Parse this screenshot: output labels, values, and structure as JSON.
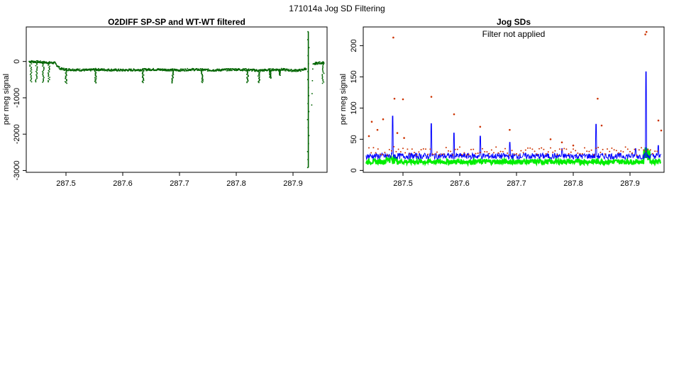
{
  "page": {
    "super_title": "171014a   Jog SD Filtering"
  },
  "chart_data": [
    {
      "type": "scatter",
      "title": "O2DIFF SP-SP and WT-WT filtered",
      "xlabel": "",
      "ylabel": "per meg signal",
      "xlim": [
        287.43,
        287.96
      ],
      "ylim": [
        -3050,
        950
      ],
      "x_ticks": [
        287.5,
        287.6,
        287.7,
        287.8,
        287.9
      ],
      "x_tick_labels": [
        "287.5",
        "287.6",
        "287.7",
        "287.8",
        "287.9"
      ],
      "y_ticks": [
        0,
        -1000,
        -2000,
        -3000
      ],
      "y_tick_labels": [
        "0",
        "-1000",
        "-2000",
        "-3000"
      ],
      "grid": false,
      "point_color": "#006400",
      "series": [
        {
          "x": [
            287.435,
            287.45,
            287.465,
            287.48,
            287.49,
            287.5,
            287.52,
            287.54,
            287.55,
            287.57,
            287.6,
            287.63,
            287.65,
            287.68,
            287.7,
            287.72,
            287.74,
            287.76,
            287.78,
            287.8,
            287.82,
            287.84,
            287.86,
            287.88,
            287.9,
            287.915,
            287.925,
            287.928,
            287.93,
            287.935,
            287.94,
            287.955
          ],
          "y": [
            0,
            -10,
            -30,
            -40,
            -200,
            -220,
            -230,
            -240,
            -220,
            -230,
            -240,
            -230,
            -220,
            -230,
            -240,
            -220,
            -230,
            -240,
            -230,
            -220,
            -230,
            -250,
            -230,
            -220,
            -250,
            -240,
            -180,
            800,
            -2900,
            -100,
            -50,
            -30
          ]
        }
      ],
      "spikes": [
        {
          "x": 287.438,
          "ymin": -560,
          "ymax": 0
        },
        {
          "x": 287.448,
          "ymin": -560,
          "ymax": -20
        },
        {
          "x": 287.46,
          "ymin": -570,
          "ymax": -30
        },
        {
          "x": 287.47,
          "ymin": -560,
          "ymax": -40
        },
        {
          "x": 287.5,
          "ymin": -600,
          "ymax": -230
        },
        {
          "x": 287.552,
          "ymin": -590,
          "ymax": -230
        },
        {
          "x": 287.636,
          "ymin": -580,
          "ymax": -230
        },
        {
          "x": 287.688,
          "ymin": -590,
          "ymax": -240
        },
        {
          "x": 287.74,
          "ymin": -580,
          "ymax": -230
        },
        {
          "x": 287.82,
          "ymin": -580,
          "ymax": -230
        },
        {
          "x": 287.84,
          "ymin": -580,
          "ymax": -240
        },
        {
          "x": 287.86,
          "ymin": -460,
          "ymax": -230
        },
        {
          "x": 287.876,
          "ymin": -380,
          "ymax": -220
        },
        {
          "x": 287.927,
          "ymin": -2920,
          "ymax": 820
        },
        {
          "x": 287.953,
          "ymin": -600,
          "ymax": -20
        }
      ]
    },
    {
      "type": "line",
      "title": "Jog SDs",
      "annotation": "Filter not applied",
      "xlabel": "",
      "ylabel": "per meg signal",
      "xlim": [
        287.43,
        287.96
      ],
      "ylim": [
        -3,
        230
      ],
      "x_ticks": [
        287.5,
        287.6,
        287.7,
        287.8,
        287.9
      ],
      "x_tick_labels": [
        "287.5",
        "287.6",
        "287.7",
        "287.8",
        "287.9"
      ],
      "y_ticks": [
        0,
        50,
        100,
        150,
        200
      ],
      "y_tick_labels": [
        "0",
        "50",
        "100",
        "150",
        "200"
      ],
      "grid": false,
      "colors": {
        "blue": "#0000ff",
        "green": "#00ee00",
        "points": "#cc3300"
      },
      "blue_spikes": [
        {
          "x": 287.482,
          "y": 87
        },
        {
          "x": 287.55,
          "y": 75
        },
        {
          "x": 287.59,
          "y": 60
        },
        {
          "x": 287.636,
          "y": 55
        },
        {
          "x": 287.688,
          "y": 45
        },
        {
          "x": 287.78,
          "y": 35
        },
        {
          "x": 287.84,
          "y": 74
        },
        {
          "x": 287.91,
          "y": 35
        },
        {
          "x": 287.928,
          "y": 158
        },
        {
          "x": 287.95,
          "y": 40
        }
      ],
      "outlier_points": {
        "x": [
          287.44,
          287.445,
          287.455,
          287.465,
          287.483,
          287.485,
          287.49,
          287.5,
          287.502,
          287.55,
          287.59,
          287.636,
          287.688,
          287.76,
          287.78,
          287.8,
          287.843,
          287.85,
          287.927,
          287.929,
          287.95,
          287.955
        ],
        "y": [
          55,
          78,
          65,
          82,
          213,
          115,
          60,
          114,
          52,
          118,
          90,
          70,
          65,
          50,
          45,
          40,
          115,
          72,
          218,
          222,
          80,
          64
        ]
      }
    }
  ]
}
